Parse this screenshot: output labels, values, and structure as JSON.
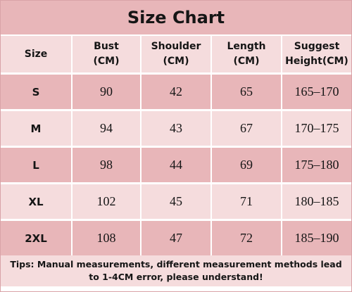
{
  "header": {
    "title": "Size Chart"
  },
  "table": {
    "columns": [
      "Size",
      "Bust\n(CM)",
      "Shoulder\n(CM)",
      "Length\n(CM)",
      "Suggest\nHeight(CM)"
    ],
    "rows": [
      [
        "S",
        90,
        42,
        65,
        "165–170"
      ],
      [
        "M",
        94,
        43,
        67,
        "170–175"
      ],
      [
        "L",
        98,
        44,
        69,
        "175–180"
      ],
      [
        "XL",
        102,
        45,
        71,
        "180–185"
      ],
      [
        "2XL",
        108,
        47,
        72,
        "185–190"
      ]
    ]
  },
  "footer": {
    "tips": "Tips: Manual measurements, different measurement methods lead to 1-4CM error, please understand!"
  }
}
